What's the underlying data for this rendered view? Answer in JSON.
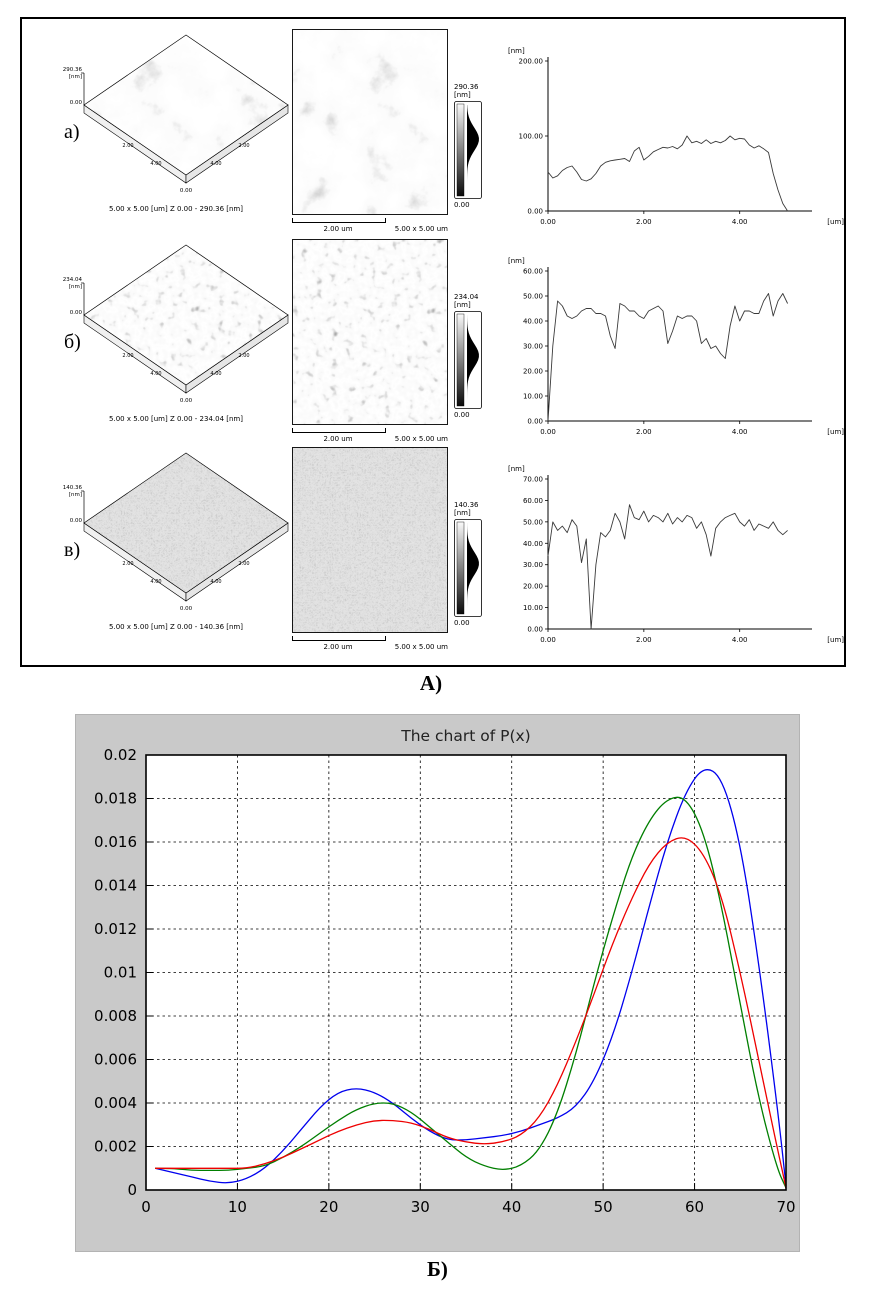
{
  "figure": {
    "panel_a": {
      "label": "А)",
      "rows": [
        {
          "row_label": "а)",
          "surface3d": {
            "z_max": "290.36",
            "z_unit": "[nm]",
            "z_min": "0.00",
            "corner_label": "0.00",
            "edge_ticks": [
              "2.00",
              "4.00"
            ],
            "caption": "5.00 x 5.00 [um]   Z 0.00 - 290.36 [nm]"
          },
          "image2d": {
            "scalebar_label": "2.00 um",
            "size_label": "5.00 x 5.00 um"
          },
          "colorbar": {
            "top_label": "290.36",
            "unit": "[nm]",
            "bottom_label": "0.00"
          }
        },
        {
          "row_label": "б)",
          "surface3d": {
            "z_max": "234.04",
            "z_unit": "[nm]",
            "z_min": "0.00",
            "corner_label": "0.00",
            "edge_ticks": [
              "2.00",
              "4.00"
            ],
            "caption": "5.00 x 5.00 [um]   Z 0.00 - 234.04 [nm]"
          },
          "image2d": {
            "scalebar_label": "2.00 um",
            "size_label": "5.00 x 5.00 um"
          },
          "colorbar": {
            "top_label": "234.04",
            "unit": "[nm]",
            "bottom_label": "0.00"
          }
        },
        {
          "row_label": "в)",
          "surface3d": {
            "z_max": "140.36",
            "z_unit": "[nm]",
            "z_min": "0.00",
            "corner_label": "0.00",
            "edge_ticks": [
              "2.00",
              "4.00"
            ],
            "caption": "5.00 x 5.00 [um]   Z 0.00 - 140.36 [nm]"
          },
          "image2d": {
            "scalebar_label": "2.00 um",
            "size_label": "5.00 x 5.00 um"
          },
          "colorbar": {
            "top_label": "140.36",
            "unit": "[nm]",
            "bottom_label": "0.00"
          }
        }
      ]
    },
    "panel_b": {
      "label": "Б)"
    }
  },
  "chart_data": [
    {
      "id": "profile-a",
      "type": "line",
      "title": "",
      "xlabel": "[um]",
      "ylabel": "[nm]",
      "xlim": [
        0,
        5.3
      ],
      "ylim": [
        0,
        200
      ],
      "grid": false,
      "yticks": [
        {
          "v": 200,
          "label": "200.00"
        },
        {
          "v": 100,
          "label": "100.00"
        },
        {
          "v": 0,
          "label": "0.00"
        }
      ],
      "xticks": [
        {
          "v": 0,
          "label": "0.00"
        },
        {
          "v": 2,
          "label": "2.00"
        },
        {
          "v": 4,
          "label": "4.00"
        }
      ],
      "x_start": 0,
      "x_step": 0.1,
      "values": [
        52,
        44,
        47,
        54,
        58,
        60,
        52,
        42,
        40,
        43,
        50,
        60,
        65,
        67,
        68,
        69,
        70,
        66,
        80,
        85,
        68,
        73,
        79,
        82,
        85,
        84,
        86,
        83,
        88,
        100,
        91,
        93,
        90,
        95,
        90,
        93,
        91,
        94,
        100,
        95,
        97,
        96,
        88,
        84,
        87,
        83,
        78,
        50,
        28,
        10,
        0
      ]
    },
    {
      "id": "profile-b",
      "type": "line",
      "title": "",
      "xlabel": "[um]",
      "ylabel": "[nm]",
      "xlim": [
        0,
        5.3
      ],
      "ylim": [
        0,
        60
      ],
      "grid": false,
      "yticks": [
        {
          "v": 60,
          "label": "60.00"
        },
        {
          "v": 50,
          "label": "50.00"
        },
        {
          "v": 40,
          "label": "40.00"
        },
        {
          "v": 30,
          "label": "30.00"
        },
        {
          "v": 20,
          "label": "20.00"
        },
        {
          "v": 10,
          "label": "10.00"
        },
        {
          "v": 0,
          "label": "0.00"
        }
      ],
      "xticks": [
        {
          "v": 0,
          "label": "0.00"
        },
        {
          "v": 2,
          "label": "2.00"
        },
        {
          "v": 4,
          "label": "4.00"
        }
      ],
      "x_start": 0,
      "x_step": 0.1,
      "values": [
        0,
        30,
        48,
        46,
        42,
        41,
        42,
        44,
        45,
        45,
        43,
        43,
        42,
        34,
        29,
        47,
        46,
        44,
        44,
        42,
        41,
        44,
        45,
        46,
        44,
        31,
        36,
        42,
        41,
        42,
        42,
        40,
        31,
        33,
        29,
        30,
        27,
        25,
        38,
        46,
        40,
        44,
        44,
        43,
        43,
        48,
        51,
        42,
        48,
        51,
        47
      ]
    },
    {
      "id": "profile-v",
      "type": "line",
      "title": "",
      "xlabel": "[um]",
      "ylabel": "[nm]",
      "xlim": [
        0,
        5.3
      ],
      "ylim": [
        0,
        70
      ],
      "grid": false,
      "yticks": [
        {
          "v": 70,
          "label": "70.00"
        },
        {
          "v": 60,
          "label": "60.00"
        },
        {
          "v": 50,
          "label": "50.00"
        },
        {
          "v": 40,
          "label": "40.00"
        },
        {
          "v": 30,
          "label": "30.00"
        },
        {
          "v": 20,
          "label": "20.00"
        },
        {
          "v": 10,
          "label": "10.00"
        },
        {
          "v": 0,
          "label": "0.00"
        }
      ],
      "xticks": [
        {
          "v": 0,
          "label": "0.00"
        },
        {
          "v": 2,
          "label": "2.00"
        },
        {
          "v": 4,
          "label": "4.00"
        }
      ],
      "x_start": 0,
      "x_step": 0.1,
      "values": [
        34,
        50,
        46,
        48,
        45,
        51,
        48,
        31,
        42,
        0,
        30,
        45,
        43,
        46,
        54,
        50,
        42,
        58,
        52,
        51,
        55,
        50,
        53,
        52,
        50,
        54,
        49,
        52,
        50,
        53,
        52,
        47,
        50,
        44,
        34,
        47,
        50,
        52,
        53,
        54,
        50,
        48,
        51,
        46,
        49,
        48,
        47,
        50,
        46,
        44,
        46
      ]
    },
    {
      "id": "px",
      "type": "line",
      "title": "The chart of P(x)",
      "xlabel": "",
      "ylabel": "",
      "xlim": [
        0,
        70
      ],
      "ylim": [
        0,
        0.02
      ],
      "grid": "dashed",
      "legend": "none",
      "xticks": [
        {
          "v": 0,
          "label": "0"
        },
        {
          "v": 10,
          "label": "10"
        },
        {
          "v": 20,
          "label": "20"
        },
        {
          "v": 30,
          "label": "30"
        },
        {
          "v": 40,
          "label": "40"
        },
        {
          "v": 50,
          "label": "50"
        },
        {
          "v": 60,
          "label": "60"
        },
        {
          "v": 70,
          "label": "70"
        }
      ],
      "yticks": [
        {
          "v": 0,
          "label": "0"
        },
        {
          "v": 0.002,
          "label": "0.002"
        },
        {
          "v": 0.004,
          "label": "0.004"
        },
        {
          "v": 0.006,
          "label": "0.006"
        },
        {
          "v": 0.008,
          "label": "0.008"
        },
        {
          "v": 0.01,
          "label": "0.01"
        },
        {
          "v": 0.012,
          "label": "0.012"
        },
        {
          "v": 0.014,
          "label": "0.014"
        },
        {
          "v": 0.016,
          "label": "0.016"
        },
        {
          "v": 0.018,
          "label": "0.018"
        },
        {
          "v": 0.02,
          "label": "0.02"
        }
      ],
      "x": [
        1,
        3,
        5,
        7,
        9,
        11,
        13,
        15,
        17,
        19,
        21,
        23,
        25,
        27,
        29,
        31,
        33,
        35,
        37,
        39,
        41,
        43,
        45,
        47,
        49,
        51,
        53,
        55,
        57,
        59,
        61,
        63,
        65,
        67,
        69,
        70
      ],
      "series": [
        {
          "name": "series-blue",
          "color": "#0000ee",
          "y": [
            0.001,
            0.0008,
            0.0006,
            0.0004,
            0.0003,
            0.0005,
            0.001,
            0.0018,
            0.0028,
            0.0038,
            0.0045,
            0.0047,
            0.0045,
            0.004,
            0.0033,
            0.0027,
            0.0023,
            0.0023,
            0.0024,
            0.0025,
            0.0027,
            0.003,
            0.0033,
            0.0038,
            0.005,
            0.007,
            0.0098,
            0.013,
            0.016,
            0.0183,
            0.0195,
            0.019,
            0.016,
            0.0105,
            0.004,
            0.0002
          ]
        },
        {
          "name": "series-green",
          "color": "#007f00",
          "y": [
            0.001,
            0.001,
            0.0009,
            0.0009,
            0.0009,
            0.001,
            0.0011,
            0.0015,
            0.002,
            0.0026,
            0.0032,
            0.0037,
            0.004,
            0.004,
            0.0036,
            0.0029,
            0.0022,
            0.0015,
            0.0011,
            0.0009,
            0.0011,
            0.0018,
            0.0035,
            0.0062,
            0.0095,
            0.0125,
            0.0152,
            0.017,
            0.018,
            0.0181,
            0.0165,
            0.013,
            0.0085,
            0.0042,
            0.001,
            0.0001
          ]
        },
        {
          "name": "series-red",
          "color": "#ee0000",
          "y": [
            0.001,
            0.001,
            0.001,
            0.001,
            0.001,
            0.001,
            0.0012,
            0.0015,
            0.0019,
            0.0023,
            0.0027,
            0.003,
            0.0032,
            0.0032,
            0.0031,
            0.0028,
            0.0024,
            0.0022,
            0.0021,
            0.0022,
            0.0025,
            0.0033,
            0.0048,
            0.0068,
            0.009,
            0.0113,
            0.0133,
            0.015,
            0.016,
            0.0163,
            0.0155,
            0.0135,
            0.01,
            0.006,
            0.002,
            0.0001
          ]
        }
      ]
    }
  ]
}
